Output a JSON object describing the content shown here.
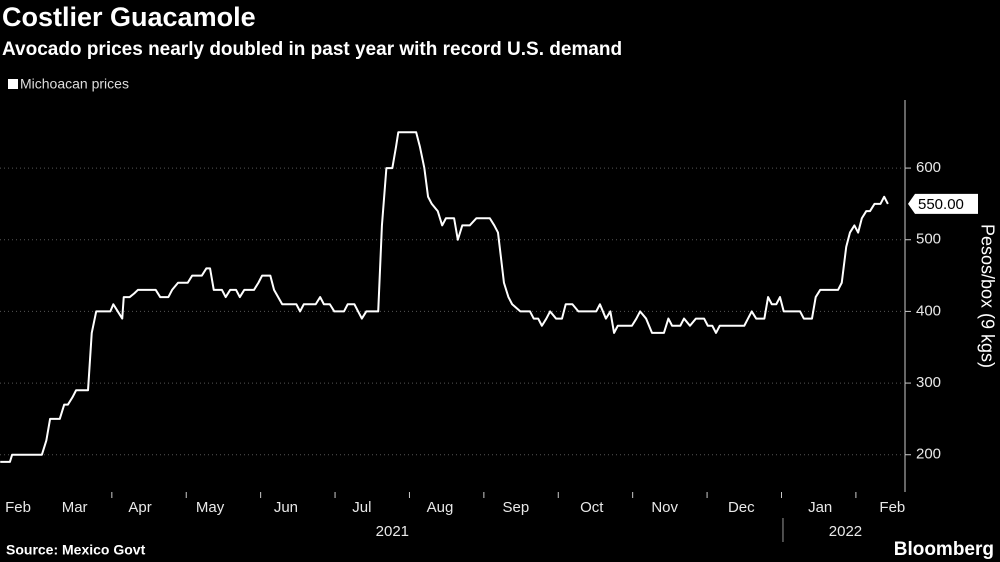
{
  "chart_data": {
    "type": "line",
    "title": "Costlier Guacamole",
    "subtitle": "Avocado prices nearly doubled in past year with record U.S. demand",
    "y_label": "Pesos/box (9 kgs)",
    "source": "Source: Mexico Govt",
    "brand": "Bloomberg",
    "series": [
      {
        "name": "Michoacan prices",
        "color": "#ffffff",
        "x": [
          0.5,
          0.63,
          0.66,
          1.06,
          1.12,
          1.17,
          1.3,
          1.36,
          1.41,
          1.47,
          1.52,
          1.68,
          1.73,
          1.79,
          1.98,
          2.02,
          2.08,
          2.14,
          2.16,
          2.24,
          2.3,
          2.35,
          2.59,
          2.65,
          2.76,
          2.81,
          2.89,
          3.02,
          3.08,
          3.21,
          3.27,
          3.32,
          3.37,
          3.48,
          3.53,
          3.59,
          3.67,
          3.72,
          3.78,
          3.91,
          3.97,
          4.02,
          4.13,
          4.18,
          4.29,
          4.48,
          4.53,
          4.58,
          4.74,
          4.8,
          4.85,
          4.93,
          4.99,
          5.12,
          5.17,
          5.26,
          5.31,
          5.36,
          5.42,
          5.58,
          5.63,
          5.69,
          5.77,
          5.82,
          5.85,
          6.09,
          6.14,
          6.2,
          6.25,
          6.3,
          6.38,
          6.44,
          6.49,
          6.6,
          6.65,
          6.71,
          6.81,
          6.9,
          7.08,
          7.14,
          7.19,
          7.27,
          7.33,
          7.38,
          7.49,
          7.62,
          7.67,
          7.73,
          7.78,
          7.84,
          7.89,
          7.97,
          8.05,
          8.1,
          8.19,
          8.27,
          8.51,
          8.56,
          8.64,
          8.7,
          8.75,
          8.8,
          8.99,
          9.05,
          9.1,
          9.18,
          9.26,
          9.42,
          9.48,
          9.53,
          9.64,
          9.69,
          9.77,
          9.85,
          9.96,
          10.01,
          10.07,
          10.12,
          10.17,
          10.5,
          10.55,
          10.6,
          10.66,
          10.77,
          10.82,
          10.87,
          10.93,
          10.98,
          11.03,
          11.09,
          11.25,
          11.3,
          11.41,
          11.46,
          11.52,
          11.76,
          11.81,
          11.87,
          11.92,
          11.98,
          12.03,
          12.08,
          12.14,
          12.19,
          12.25,
          12.33,
          12.38,
          12.43
        ],
        "values": [
          190,
          190,
          200,
          200,
          220,
          250,
          250,
          270,
          270,
          280,
          290,
          290,
          370,
          400,
          400,
          410,
          400,
          390,
          420,
          420,
          425,
          430,
          430,
          420,
          420,
          430,
          440,
          440,
          450,
          450,
          460,
          460,
          430,
          430,
          420,
          430,
          430,
          420,
          430,
          430,
          440,
          450,
          450,
          430,
          410,
          410,
          400,
          410,
          410,
          420,
          410,
          410,
          400,
          400,
          410,
          410,
          400,
          390,
          400,
          400,
          520,
          600,
          600,
          630,
          650,
          650,
          630,
          600,
          560,
          550,
          540,
          520,
          530,
          530,
          500,
          520,
          520,
          530,
          530,
          520,
          510,
          440,
          420,
          410,
          400,
          400,
          390,
          390,
          380,
          390,
          400,
          390,
          390,
          410,
          410,
          400,
          400,
          410,
          390,
          400,
          370,
          380,
          380,
          390,
          400,
          390,
          370,
          370,
          390,
          380,
          380,
          390,
          380,
          390,
          390,
          380,
          380,
          370,
          380,
          380,
          390,
          400,
          390,
          390,
          420,
          410,
          410,
          420,
          400,
          400,
          400,
          390,
          390,
          420,
          430,
          430,
          440,
          490,
          510,
          520,
          510,
          530,
          540,
          540,
          550,
          550,
          560,
          550
        ]
      }
    ],
    "annotations": [
      {
        "x": 12.43,
        "y": 550,
        "label": "550.00"
      }
    ],
    "xlim": [
      0.497,
      12.66
    ],
    "ylim": [
      148,
      695
    ],
    "yticks": [
      200,
      300,
      400,
      500,
      600
    ],
    "xticks": [
      {
        "value": 0.74,
        "label": "Feb"
      },
      {
        "value": 1.5,
        "label": "Mar"
      },
      {
        "value": 2.38,
        "label": "Apr"
      },
      {
        "value": 3.32,
        "label": "May"
      },
      {
        "value": 4.34,
        "label": "Jun"
      },
      {
        "value": 5.36,
        "label": "Jul"
      },
      {
        "value": 6.41,
        "label": "Aug"
      },
      {
        "value": 7.43,
        "label": "Sep"
      },
      {
        "value": 8.45,
        "label": "Oct"
      },
      {
        "value": 9.43,
        "label": "Nov"
      },
      {
        "value": 10.46,
        "label": "Dec"
      },
      {
        "value": 11.52,
        "label": "Jan"
      },
      {
        "value": 12.49,
        "label": "Feb"
      }
    ],
    "minor_xticks": [
      2,
      3,
      4,
      5,
      6,
      7,
      8,
      9,
      10,
      11,
      12
    ],
    "year_labels": [
      {
        "value": 5.77,
        "label": "2021"
      },
      {
        "value": 11.86,
        "label": "2022"
      }
    ],
    "year_divider": 11.02
  }
}
